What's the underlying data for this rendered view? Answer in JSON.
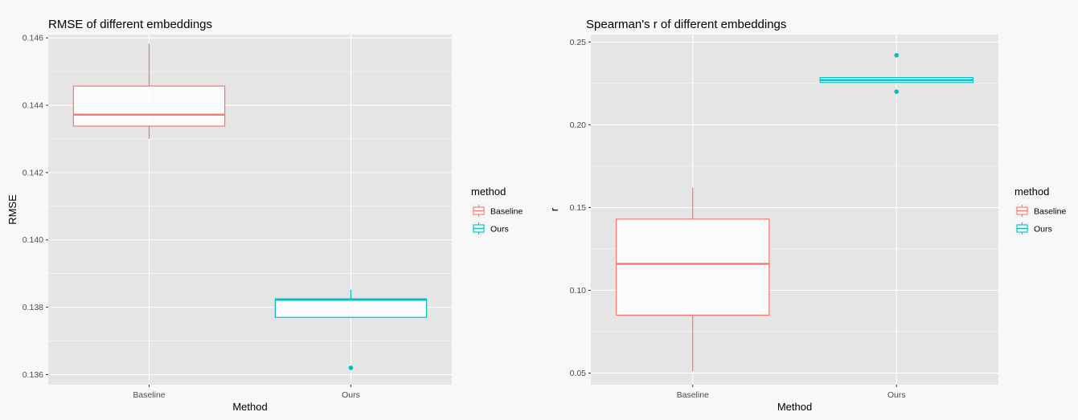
{
  "colors": {
    "baseline": "#F8766D",
    "ours": "#00BFC4",
    "panel": "#e5e5e5",
    "grid": "#ffffff"
  },
  "legend": {
    "title": "method",
    "items": [
      "Baseline",
      "Ours"
    ]
  },
  "chart_data": [
    {
      "type": "boxplot",
      "title": "RMSE of different embeddings",
      "xlabel": "Method",
      "ylabel": "RMSE",
      "categories": [
        "Baseline",
        "Ours"
      ],
      "ylim": [
        0.1357,
        0.1461
      ],
      "yticks": [
        "0.136",
        "0.138",
        "0.140",
        "0.142",
        "0.144",
        "0.146"
      ],
      "boxes": [
        {
          "category": "Baseline",
          "lower_whisker": 0.143,
          "q1": 0.14338,
          "median": 0.14372,
          "q3": 0.14457,
          "upper_whisker": 0.14583,
          "outliers": []
        },
        {
          "category": "Ours",
          "lower_whisker": 0.1377,
          "q1": 0.1377,
          "median": 0.13822,
          "q3": 0.13825,
          "upper_whisker": 0.13852,
          "outliers": [
            0.1362
          ]
        }
      ]
    },
    {
      "type": "boxplot",
      "title": "Spearman's r of different embeddings",
      "xlabel": "Method",
      "ylabel": "r",
      "categories": [
        "Baseline",
        "Ours"
      ],
      "ylim": [
        0.043,
        0.2545
      ],
      "yticks": [
        "0.05",
        "0.10",
        "0.15",
        "0.20",
        "0.25"
      ],
      "boxes": [
        {
          "category": "Baseline",
          "lower_whisker": 0.051,
          "q1": 0.085,
          "median": 0.116,
          "q3": 0.143,
          "upper_whisker": 0.162,
          "outliers": []
        },
        {
          "category": "Ours",
          "lower_whisker": 0.2255,
          "q1": 0.2255,
          "median": 0.227,
          "q3": 0.2285,
          "upper_whisker": 0.2285,
          "outliers": [
            0.242,
            0.22
          ]
        }
      ]
    }
  ]
}
